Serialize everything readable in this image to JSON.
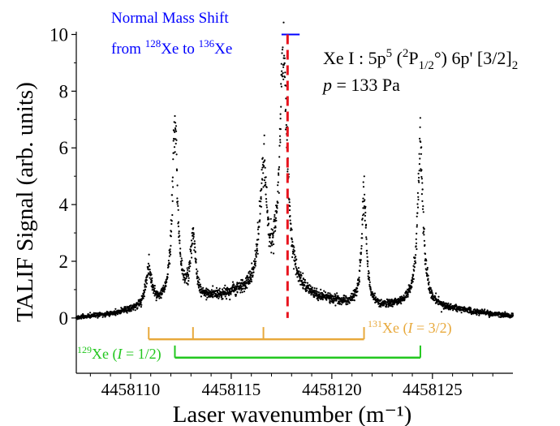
{
  "chart_data": {
    "type": "scatter",
    "xlabel": "Laser wavenumber (m⁻¹)",
    "ylabel": "TALIF Signal (arb. units)",
    "xlim": [
      4458107.3,
      4458129.0
    ],
    "ylim": [
      -1.95,
      10.1
    ],
    "x_ticks": [
      4458110,
      4458115,
      4458120,
      4458125
    ],
    "x_tick_labels": [
      "4458110",
      "4458115",
      "4458120",
      "4458125"
    ],
    "y_ticks": [
      0,
      2,
      4,
      6,
      8,
      10
    ],
    "y_tick_labels": [
      "0",
      "2",
      "4",
      "6",
      "8",
      "10"
    ],
    "grid": false,
    "marker_color": "#000000",
    "baseline": [
      {
        "x": 4458107.3,
        "y": 0.0
      },
      {
        "x": 4458109.0,
        "y": 0.12
      },
      {
        "x": 4458110.0,
        "y": 0.25
      },
      {
        "x": 4458112.0,
        "y": 0.45
      },
      {
        "x": 4458113.5,
        "y": 0.6
      },
      {
        "x": 4458115.0,
        "y": 0.8
      },
      {
        "x": 4458116.2,
        "y": 0.95
      },
      {
        "x": 4458117.5,
        "y": 1.0
      },
      {
        "x": 4458119.0,
        "y": 0.7
      },
      {
        "x": 4458120.5,
        "y": 0.5
      },
      {
        "x": 4458122.5,
        "y": 0.35
      },
      {
        "x": 4458124.0,
        "y": 0.5
      },
      {
        "x": 4458126.0,
        "y": 0.3
      },
      {
        "x": 4458129.0,
        "y": 0.05
      }
    ],
    "peaks": [
      {
        "x": 4458110.9,
        "height": 1.3,
        "width": 0.18
      },
      {
        "x": 4458112.2,
        "height": 6.2,
        "width": 0.16
      },
      {
        "x": 4458113.1,
        "height": 2.2,
        "width": 0.15
      },
      {
        "x": 4458116.6,
        "height": 4.2,
        "width": 0.2
      },
      {
        "x": 4458117.6,
        "height": 8.2,
        "width": 0.22
      },
      {
        "x": 4458121.6,
        "height": 3.9,
        "width": 0.14
      },
      {
        "x": 4458124.4,
        "height": 5.4,
        "width": 0.17
      }
    ],
    "mass_shift": {
      "label_line1": "Normal Mass Shift",
      "label_from": "from ",
      "sup_a": "128",
      "el_a": "Xe to ",
      "sup_b": "136",
      "el_b": "Xe",
      "x_start": 4458117.5,
      "x_end": 4458118.4,
      "y": 10.0,
      "color": "#0000ff"
    },
    "line_center": {
      "x": 4458117.8,
      "y_top": 10.0,
      "y_bottom": 0.0,
      "color": "#e8141e"
    },
    "annotation_level": {
      "line1_prefix": "Xe I : 5p",
      "line1_sup5": "5",
      "line1_open": " (",
      "line1_sup2": "2",
      "line1_P": "P",
      "line1_sub": "1/2",
      "line1_deg": "°) 6p' [3/2]",
      "line1_sub2": "2",
      "line2_p": "p",
      "line2_rest": " = 133 Pa"
    },
    "isotope_131": {
      "sup": "131",
      "label_main": "Xe (",
      "label_I": "I",
      "label_rest": " = 3/2)",
      "y": -0.75,
      "x_start": 4458110.9,
      "x_end": 4458121.6,
      "ticks": [
        4458110.9,
        4458113.1,
        4458116.6,
        4458121.6
      ],
      "color": "#e8a93c"
    },
    "isotope_129": {
      "sup": "129",
      "label_main": "Xe (",
      "label_I": "I",
      "label_rest": " = 1/2)",
      "y": -1.4,
      "x_start": 4458112.2,
      "x_end": 4458124.4,
      "ticks": [
        4458112.2,
        4458124.4
      ],
      "color": "#22c71e"
    }
  }
}
